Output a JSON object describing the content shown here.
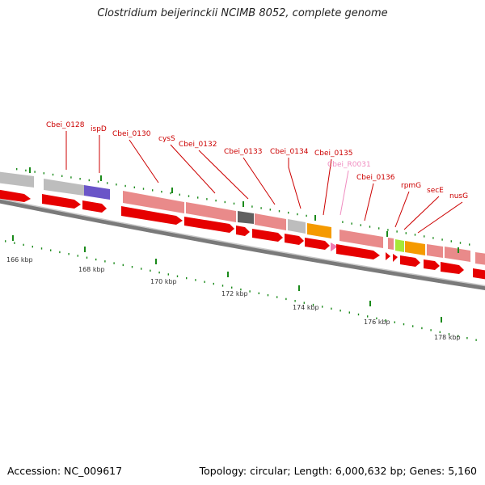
{
  "title": "Clostridium beijerinckii NCIMB 8052, complete genome",
  "footer": {
    "accession": "Accession: NC_009617",
    "summary": "Topology: circular; Length: 6,000,632 bp; Genes: 5,160"
  },
  "colors": {
    "cds_red": "#e60000",
    "feature_pink": "#e98a8a",
    "feature_gray": "#bdbdbd",
    "feature_purple": "#6a55c8",
    "feature_dark": "#606060",
    "feature_orange": "#f59a00",
    "feature_green": "#a6e838",
    "label_red": "#cc0000",
    "label_pink": "#f08cc0",
    "tick_green": "#1a8a1a",
    "backbone": "#7a7a7a"
  },
  "scale_labels": [
    "166 kbp",
    "168 kbp",
    "170 kbp",
    "172 kbp",
    "174 kbp",
    "176 kbp",
    "178 kbp"
  ],
  "gene_labels": [
    {
      "text": "Cbei_0128",
      "pink": false
    },
    {
      "text": "ispD",
      "pink": false
    },
    {
      "text": "Cbei_0130",
      "pink": false
    },
    {
      "text": "cysS",
      "pink": false
    },
    {
      "text": "Cbei_0132",
      "pink": false
    },
    {
      "text": "Cbei_0133",
      "pink": false
    },
    {
      "text": "Cbei_0134",
      "pink": false
    },
    {
      "text": "Cbei_0135",
      "pink": false
    },
    {
      "text": "Cbei_R0031",
      "pink": true
    },
    {
      "text": "Cbei_0136",
      "pink": false
    },
    {
      "text": "rpmG",
      "pink": false
    },
    {
      "text": "secE",
      "pink": false
    },
    {
      "text": "nusG",
      "pink": false
    }
  ]
}
